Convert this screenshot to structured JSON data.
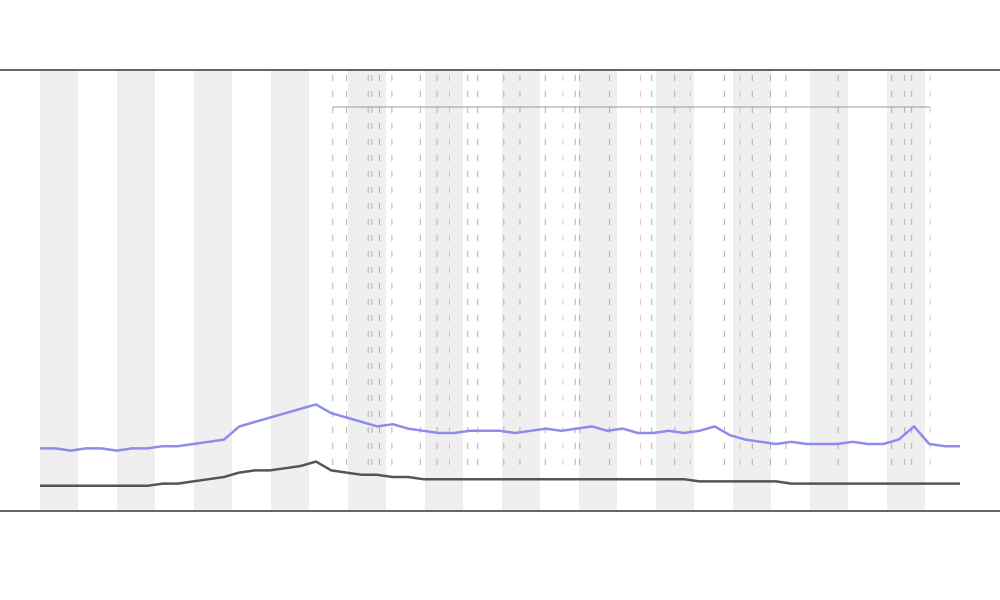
{
  "chart_data": {
    "type": "line",
    "x": [
      0,
      2,
      4,
      6,
      8,
      10,
      12,
      14,
      16,
      18,
      20,
      22,
      24,
      26,
      28,
      30,
      32,
      34,
      36,
      38,
      40,
      42,
      44,
      46,
      48,
      50,
      52,
      54,
      56,
      58,
      60,
      62,
      64,
      66,
      68,
      70,
      72,
      74,
      76,
      78,
      80,
      82,
      84,
      86,
      88,
      90,
      92,
      94,
      96,
      98,
      100,
      102,
      104,
      106,
      108,
      110,
      112,
      114,
      116,
      118,
      120
    ],
    "xlim": [
      0,
      120
    ],
    "ylim": [
      0,
      100
    ],
    "series": [
      {
        "color": "#8c8cec",
        "values": [
          14,
          14,
          13.5,
          14,
          14,
          13.5,
          14,
          14,
          14.5,
          14.5,
          15,
          15.5,
          16,
          19,
          20,
          21,
          22,
          23,
          24,
          22,
          21,
          20,
          19,
          19.5,
          18.5,
          18,
          17.5,
          17.5,
          18,
          18,
          18,
          17.5,
          18,
          18.5,
          18,
          18.5,
          19,
          18,
          18.5,
          17.5,
          17.5,
          18,
          17.5,
          18,
          19,
          17,
          16,
          15.5,
          15,
          15.5,
          15,
          15,
          15,
          15.5,
          15,
          15,
          16,
          19,
          15,
          14.5,
          14.5
        ]
      },
      {
        "color": "#555555",
        "values": [
          5.5,
          5.5,
          5.5,
          5.5,
          5.5,
          5.5,
          5.5,
          5.5,
          6,
          6,
          6.5,
          7,
          7.5,
          8.5,
          9,
          9,
          9.5,
          10,
          11,
          9,
          8.5,
          8,
          8,
          7.5,
          7.5,
          7,
          7,
          7,
          7,
          7,
          7,
          7,
          7,
          7,
          7,
          7,
          7,
          7,
          7,
          7,
          7,
          7,
          7,
          6.5,
          6.5,
          6.5,
          6.5,
          6.5,
          6.5,
          6,
          6,
          6,
          6,
          6,
          6,
          6,
          6,
          6,
          6,
          6,
          6
        ]
      }
    ],
    "events": {
      "color": "#888888",
      "x": [
        38.2,
        40,
        42.8,
        43.3,
        44.3,
        45.9,
        49.6,
        51.8,
        55.8,
        57.1,
        60.5,
        62.6,
        65.9,
        69.8,
        70.4,
        74.3,
        79.8,
        82.8,
        89.3,
        92.9,
        95.3,
        97.3,
        104.1,
        111.1,
        112.8,
        113.7
      ]
    },
    "highlights": {
      "color": "#e8a070",
      "x": [
        53.4,
        68.2,
        78.3,
        84.8,
        91.3,
        116.1
      ]
    }
  }
}
